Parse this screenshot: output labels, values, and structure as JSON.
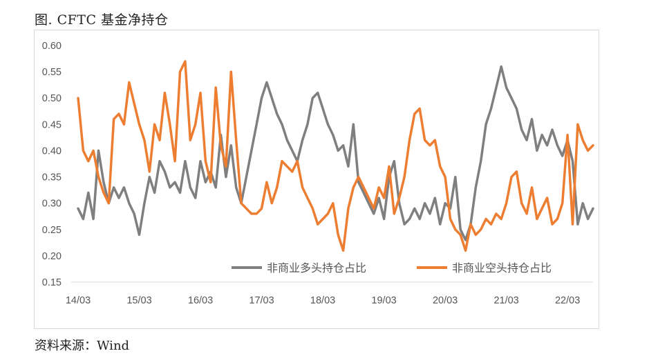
{
  "title": "图. CFTC 基金净持仓",
  "source": "资料来源：Wind",
  "colors": {
    "long": "#7f7f7f",
    "short": "#ed7d31",
    "axis": "#d9d9d9",
    "text": "#595959"
  },
  "chart_data": {
    "type": "line",
    "title": "图. CFTC 基金净持仓",
    "xlabel": "",
    "ylabel": "",
    "x_range": [
      "2014-03",
      "2022-08"
    ],
    "x_ticks": [
      "14/03",
      "15/03",
      "16/03",
      "17/03",
      "18/03",
      "19/03",
      "20/03",
      "21/03",
      "22/03"
    ],
    "ylim": [
      0.15,
      0.6
    ],
    "y_ticks": [
      "0.15",
      "0.20",
      "0.25",
      "0.30",
      "0.35",
      "0.40",
      "0.45",
      "0.50",
      "0.55",
      "0.60"
    ],
    "grid": false,
    "legend_position": "bottom-right",
    "x": [
      "2014-03",
      "2014-04",
      "2014-05",
      "2014-06",
      "2014-07",
      "2014-08",
      "2014-09",
      "2014-10",
      "2014-11",
      "2014-12",
      "2015-01",
      "2015-02",
      "2015-03",
      "2015-04",
      "2015-05",
      "2015-06",
      "2015-07",
      "2015-08",
      "2015-09",
      "2015-10",
      "2015-11",
      "2015-12",
      "2016-01",
      "2016-02",
      "2016-03",
      "2016-04",
      "2016-05",
      "2016-06",
      "2016-07",
      "2016-08",
      "2016-09",
      "2016-10",
      "2016-11",
      "2016-12",
      "2017-01",
      "2017-02",
      "2017-03",
      "2017-04",
      "2017-05",
      "2017-06",
      "2017-07",
      "2017-08",
      "2017-09",
      "2017-10",
      "2017-11",
      "2017-12",
      "2018-01",
      "2018-02",
      "2018-03",
      "2018-04",
      "2018-05",
      "2018-06",
      "2018-07",
      "2018-08",
      "2018-09",
      "2018-10",
      "2018-11",
      "2018-12",
      "2019-01",
      "2019-02",
      "2019-03",
      "2019-04",
      "2019-05",
      "2019-06",
      "2019-07",
      "2019-08",
      "2019-09",
      "2019-10",
      "2019-11",
      "2019-12",
      "2020-01",
      "2020-02",
      "2020-03",
      "2020-04",
      "2020-05",
      "2020-06",
      "2020-07",
      "2020-08",
      "2020-09",
      "2020-10",
      "2020-11",
      "2020-12",
      "2021-01",
      "2021-02",
      "2021-03",
      "2021-04",
      "2021-05",
      "2021-06",
      "2021-07",
      "2021-08",
      "2021-09",
      "2021-10",
      "2021-11",
      "2021-12",
      "2022-01",
      "2022-02",
      "2022-03",
      "2022-04",
      "2022-05",
      "2022-06",
      "2022-07",
      "2022-08"
    ],
    "series": [
      {
        "name": "非商业多头持仓占比",
        "values": [
          0.29,
          0.27,
          0.32,
          0.27,
          0.4,
          0.34,
          0.3,
          0.33,
          0.31,
          0.33,
          0.3,
          0.28,
          0.24,
          0.3,
          0.35,
          0.32,
          0.38,
          0.36,
          0.33,
          0.34,
          0.32,
          0.38,
          0.33,
          0.31,
          0.38,
          0.34,
          0.36,
          0.33,
          0.43,
          0.35,
          0.41,
          0.33,
          0.3,
          0.35,
          0.4,
          0.45,
          0.5,
          0.53,
          0.5,
          0.47,
          0.45,
          0.42,
          0.4,
          0.38,
          0.42,
          0.45,
          0.5,
          0.51,
          0.48,
          0.45,
          0.43,
          0.4,
          0.41,
          0.37,
          0.45,
          0.34,
          0.32,
          0.3,
          0.28,
          0.31,
          0.27,
          0.35,
          0.38,
          0.3,
          0.26,
          0.27,
          0.29,
          0.27,
          0.3,
          0.28,
          0.31,
          0.26,
          0.3,
          0.29,
          0.35,
          0.25,
          0.23,
          0.26,
          0.33,
          0.38,
          0.45,
          0.48,
          0.52,
          0.56,
          0.52,
          0.5,
          0.48,
          0.44,
          0.42,
          0.46,
          0.4,
          0.43,
          0.41,
          0.44,
          0.41,
          0.39,
          0.42,
          0.38,
          0.26,
          0.3,
          0.27,
          0.29
        ]
      },
      {
        "name": "非商业空头持仓占比",
        "values": [
          0.5,
          0.4,
          0.38,
          0.4,
          0.35,
          0.32,
          0.3,
          0.46,
          0.47,
          0.45,
          0.53,
          0.49,
          0.45,
          0.42,
          0.36,
          0.45,
          0.42,
          0.51,
          0.45,
          0.38,
          0.55,
          0.57,
          0.42,
          0.45,
          0.51,
          0.38,
          0.34,
          0.52,
          0.41,
          0.37,
          0.55,
          0.42,
          0.3,
          0.29,
          0.28,
          0.28,
          0.29,
          0.34,
          0.3,
          0.33,
          0.38,
          0.37,
          0.36,
          0.38,
          0.33,
          0.31,
          0.29,
          0.26,
          0.27,
          0.28,
          0.3,
          0.24,
          0.21,
          0.29,
          0.33,
          0.35,
          0.33,
          0.31,
          0.29,
          0.33,
          0.31,
          0.37,
          0.28,
          0.31,
          0.35,
          0.42,
          0.47,
          0.48,
          0.42,
          0.41,
          0.42,
          0.37,
          0.35,
          0.27,
          0.25,
          0.24,
          0.21,
          0.26,
          0.24,
          0.25,
          0.27,
          0.26,
          0.28,
          0.27,
          0.3,
          0.35,
          0.36,
          0.3,
          0.28,
          0.33,
          0.27,
          0.29,
          0.31,
          0.26,
          0.27,
          0.3,
          0.43,
          0.26,
          0.45,
          0.42,
          0.4,
          0.41
        ]
      }
    ]
  }
}
